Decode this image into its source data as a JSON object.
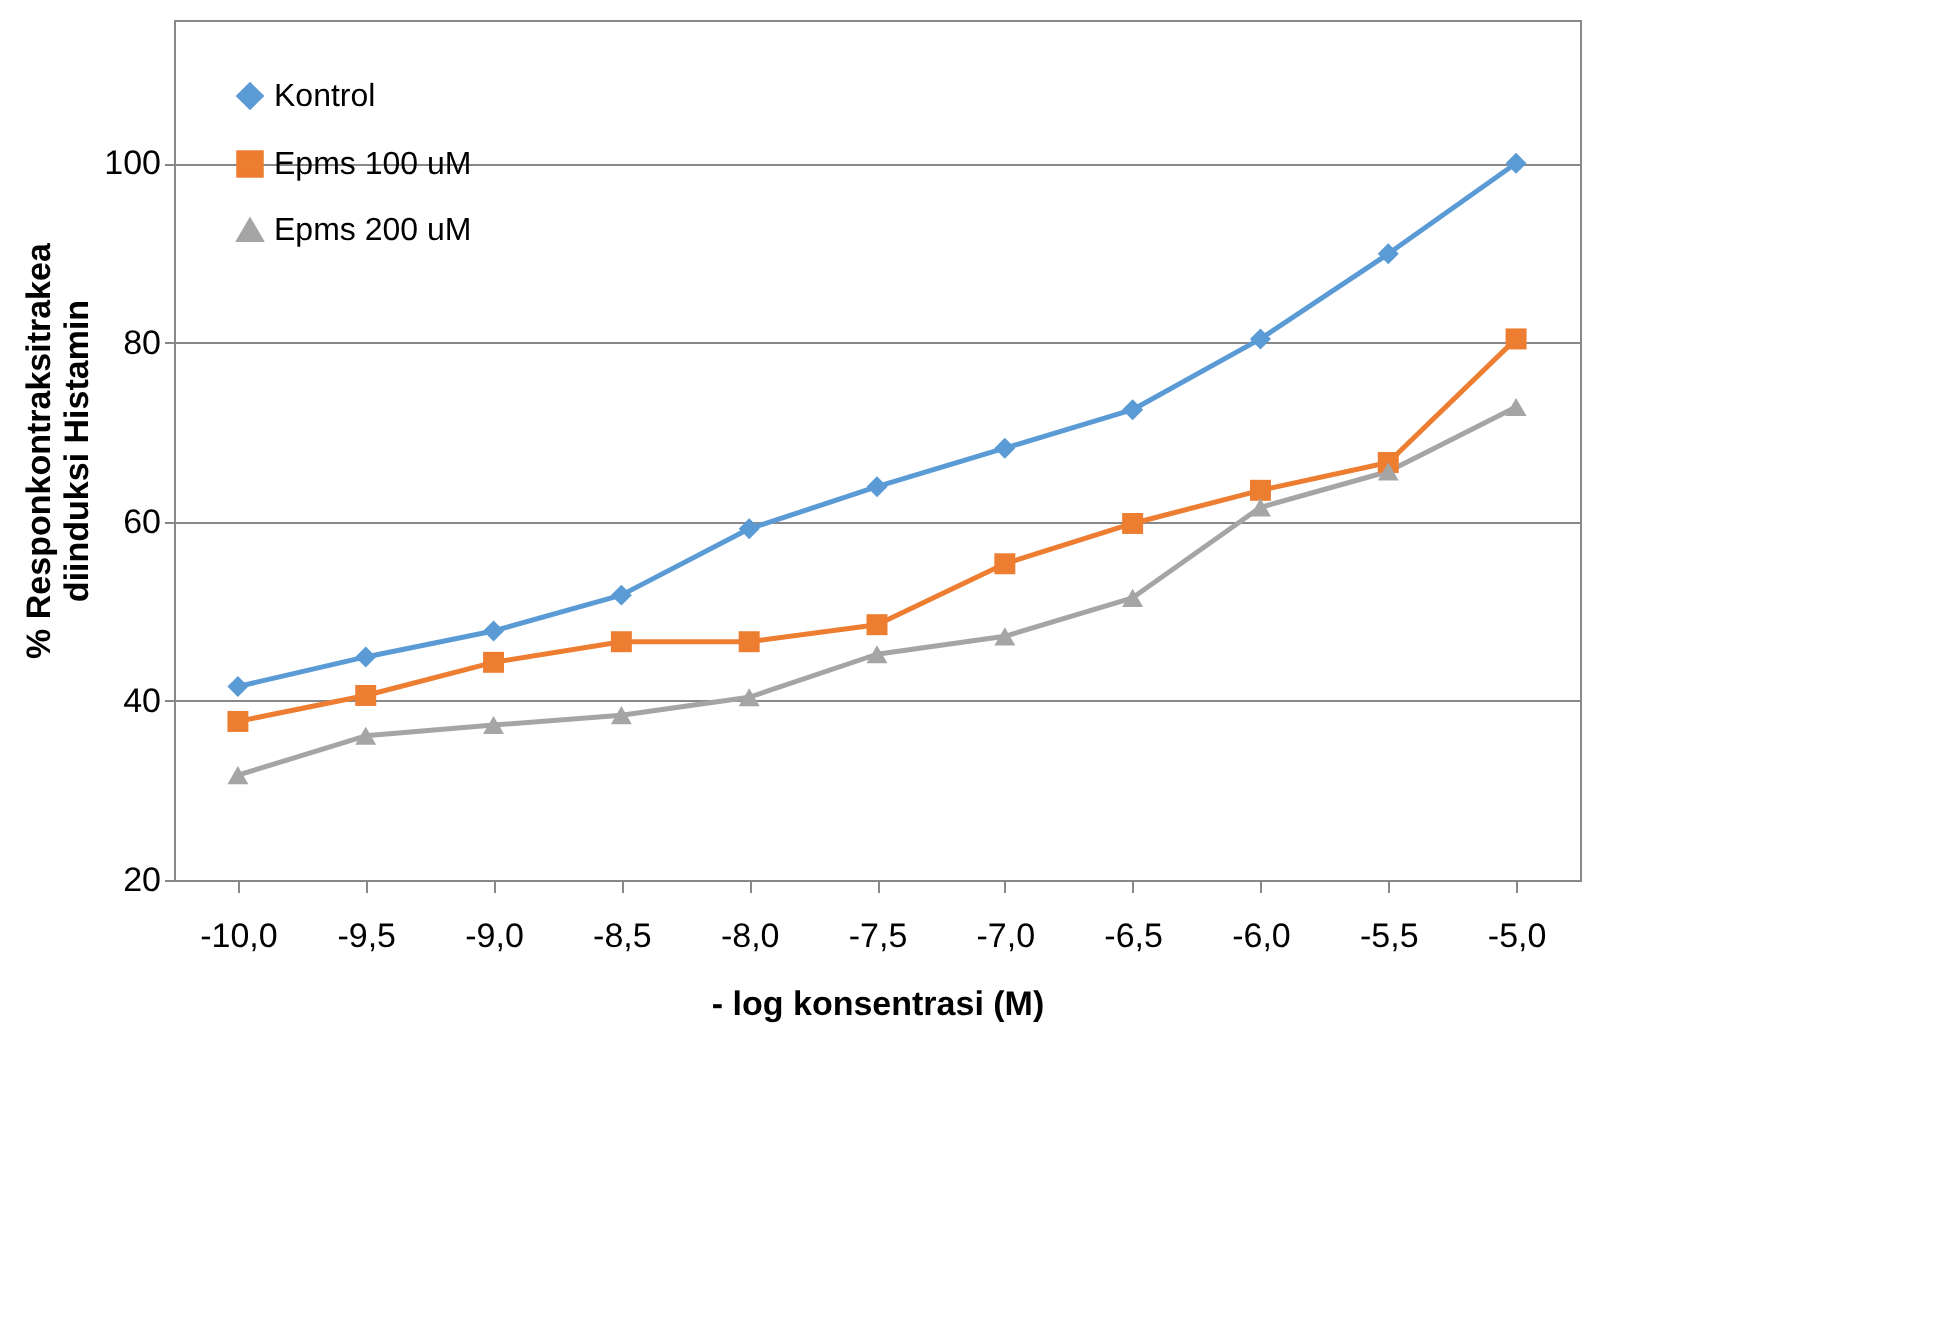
{
  "chart_data": {
    "type": "line",
    "xlabel": "- log konsentrasi (M)",
    "ylabel": "% Responkontraksitrakea\ndiinduksi Histamin",
    "categories": [
      "-10,0",
      "-9,5",
      "-9,0",
      "-8,5",
      "-8,0",
      "-7,5",
      "-7,0",
      "-6,5",
      "-6,0",
      "-5,5",
      "-5,0"
    ],
    "series": [
      {
        "name": "Kontrol",
        "color": "#5b9bd5",
        "marker": "diamond",
        "values": [
          41.6,
          44.9,
          47.8,
          51.8,
          59.2,
          63.9,
          68.2,
          72.5,
          80.4,
          89.9,
          100.0
        ]
      },
      {
        "name": "Epms 100 uM",
        "color": "#ed7d31",
        "marker": "square",
        "values": [
          37.7,
          40.6,
          44.3,
          46.6,
          46.6,
          48.5,
          55.3,
          59.8,
          63.5,
          66.6,
          80.4
        ]
      },
      {
        "name": "Epms 200 uM",
        "color": "#a5a5a5",
        "marker": "triangle",
        "values": [
          31.7,
          36.1,
          37.3,
          38.4,
          40.4,
          45.2,
          47.2,
          51.5,
          61.6,
          65.6,
          72.8
        ]
      }
    ],
    "ylim": [
      20,
      116
    ],
    "yticks": [
      20,
      40,
      60,
      80,
      100
    ],
    "grid": "y",
    "legend": "top left",
    "line_style": "solid"
  }
}
